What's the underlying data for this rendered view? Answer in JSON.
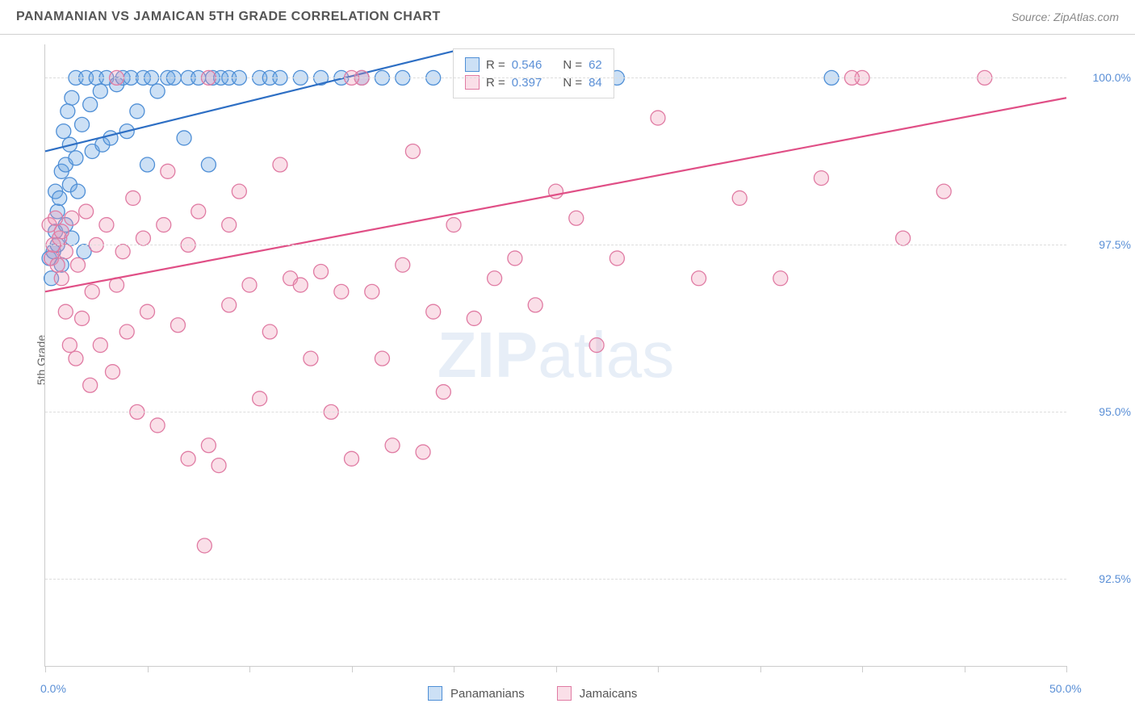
{
  "header": {
    "title": "PANAMANIAN VS JAMAICAN 5TH GRADE CORRELATION CHART",
    "source": "Source: ZipAtlas.com"
  },
  "axes": {
    "y_label": "5th Grade",
    "x_min": 0.0,
    "x_max": 50.0,
    "y_min": 91.2,
    "y_max": 100.5,
    "x_ticks": [
      0,
      5,
      10,
      15,
      20,
      25,
      30,
      35,
      40,
      45,
      50
    ],
    "x_tick_labels": {
      "0": "0.0%",
      "50": "50.0%"
    },
    "y_ticks": [
      92.5,
      95.0,
      97.5,
      100.0
    ],
    "y_tick_labels": [
      "92.5%",
      "95.0%",
      "97.5%",
      "100.0%"
    ],
    "grid_color": "#dddddd"
  },
  "watermark": {
    "text_bold": "ZIP",
    "text_light": "atlas"
  },
  "series": [
    {
      "name": "Panamanians",
      "color_fill": "rgba(110,165,225,0.35)",
      "color_stroke": "#4f8fd6",
      "line_color": "#2e6fc4",
      "r_value": "0.546",
      "n_value": "62",
      "trend": {
        "x1": 0,
        "y1": 98.9,
        "x2": 20,
        "y2": 100.4
      },
      "points": [
        [
          0.2,
          97.3
        ],
        [
          0.3,
          97.0
        ],
        [
          0.4,
          97.4
        ],
        [
          0.5,
          97.7
        ],
        [
          0.5,
          98.3
        ],
        [
          0.6,
          97.5
        ],
        [
          0.6,
          98.0
        ],
        [
          0.7,
          98.2
        ],
        [
          0.8,
          97.2
        ],
        [
          0.8,
          98.6
        ],
        [
          0.9,
          99.2
        ],
        [
          1.0,
          97.8
        ],
        [
          1.0,
          98.7
        ],
        [
          1.1,
          99.5
        ],
        [
          1.2,
          98.4
        ],
        [
          1.2,
          99.0
        ],
        [
          1.3,
          97.6
        ],
        [
          1.3,
          99.7
        ],
        [
          1.5,
          98.8
        ],
        [
          1.5,
          100.0
        ],
        [
          1.6,
          98.3
        ],
        [
          1.8,
          99.3
        ],
        [
          1.9,
          97.4
        ],
        [
          2.0,
          100.0
        ],
        [
          2.2,
          99.6
        ],
        [
          2.3,
          98.9
        ],
        [
          2.5,
          100.0
        ],
        [
          2.7,
          99.8
        ],
        [
          2.8,
          99.0
        ],
        [
          3.0,
          100.0
        ],
        [
          3.2,
          99.1
        ],
        [
          3.5,
          99.9
        ],
        [
          3.8,
          100.0
        ],
        [
          4.0,
          99.2
        ],
        [
          4.2,
          100.0
        ],
        [
          4.5,
          99.5
        ],
        [
          4.8,
          100.0
        ],
        [
          5.0,
          98.7
        ],
        [
          5.2,
          100.0
        ],
        [
          5.5,
          99.8
        ],
        [
          6.0,
          100.0
        ],
        [
          6.3,
          100.0
        ],
        [
          6.8,
          99.1
        ],
        [
          7.0,
          100.0
        ],
        [
          7.5,
          100.0
        ],
        [
          8.0,
          98.7
        ],
        [
          8.2,
          100.0
        ],
        [
          8.6,
          100.0
        ],
        [
          9.0,
          100.0
        ],
        [
          9.5,
          100.0
        ],
        [
          10.5,
          100.0
        ],
        [
          11.0,
          100.0
        ],
        [
          11.5,
          100.0
        ],
        [
          12.5,
          100.0
        ],
        [
          13.5,
          100.0
        ],
        [
          14.5,
          100.0
        ],
        [
          15.5,
          100.0
        ],
        [
          16.5,
          100.0
        ],
        [
          17.5,
          100.0
        ],
        [
          19.0,
          100.0
        ],
        [
          28.0,
          100.0
        ],
        [
          38.5,
          100.0
        ]
      ]
    },
    {
      "name": "Jamaicans",
      "color_fill": "rgba(240,150,180,0.3)",
      "color_stroke": "#e07ba3",
      "line_color": "#e04f86",
      "r_value": "0.397",
      "n_value": "84",
      "trend": {
        "x1": 0,
        "y1": 96.8,
        "x2": 50,
        "y2": 99.7
      },
      "points": [
        [
          0.2,
          97.8
        ],
        [
          0.3,
          97.3
        ],
        [
          0.4,
          97.5
        ],
        [
          0.5,
          97.9
        ],
        [
          0.6,
          97.2
        ],
        [
          0.7,
          97.6
        ],
        [
          0.8,
          97.0
        ],
        [
          0.8,
          97.7
        ],
        [
          1.0,
          97.4
        ],
        [
          1.0,
          96.5
        ],
        [
          1.2,
          96.0
        ],
        [
          1.3,
          97.9
        ],
        [
          1.5,
          95.8
        ],
        [
          1.6,
          97.2
        ],
        [
          1.8,
          96.4
        ],
        [
          2.0,
          98.0
        ],
        [
          2.2,
          95.4
        ],
        [
          2.3,
          96.8
        ],
        [
          2.5,
          97.5
        ],
        [
          2.7,
          96.0
        ],
        [
          3.0,
          97.8
        ],
        [
          3.3,
          95.6
        ],
        [
          3.5,
          96.9
        ],
        [
          3.8,
          97.4
        ],
        [
          4.0,
          96.2
        ],
        [
          4.3,
          98.2
        ],
        [
          4.5,
          95.0
        ],
        [
          4.8,
          97.6
        ],
        [
          5.0,
          96.5
        ],
        [
          5.5,
          94.8
        ],
        [
          5.8,
          97.8
        ],
        [
          6.0,
          98.6
        ],
        [
          6.5,
          96.3
        ],
        [
          7.0,
          94.3
        ],
        [
          7.0,
          97.5
        ],
        [
          7.5,
          98.0
        ],
        [
          7.8,
          93.0
        ],
        [
          8.0,
          94.5
        ],
        [
          8.5,
          94.2
        ],
        [
          9.0,
          96.6
        ],
        [
          9.0,
          97.8
        ],
        [
          9.5,
          98.3
        ],
        [
          10.0,
          96.9
        ],
        [
          10.5,
          95.2
        ],
        [
          11.0,
          96.2
        ],
        [
          11.5,
          98.7
        ],
        [
          12.0,
          97.0
        ],
        [
          12.5,
          96.9
        ],
        [
          13.0,
          95.8
        ],
        [
          13.5,
          97.1
        ],
        [
          14.0,
          95.0
        ],
        [
          14.5,
          96.8
        ],
        [
          15.0,
          94.3
        ],
        [
          15.5,
          100.0
        ],
        [
          16.0,
          96.8
        ],
        [
          16.5,
          95.8
        ],
        [
          17.0,
          94.5
        ],
        [
          17.5,
          97.2
        ],
        [
          18.0,
          98.9
        ],
        [
          18.5,
          94.4
        ],
        [
          19.0,
          96.5
        ],
        [
          19.5,
          95.3
        ],
        [
          20.0,
          97.8
        ],
        [
          21.0,
          96.4
        ],
        [
          22.0,
          97.0
        ],
        [
          23.0,
          97.3
        ],
        [
          24.0,
          96.6
        ],
        [
          25.0,
          98.3
        ],
        [
          26.0,
          97.9
        ],
        [
          27.0,
          96.0
        ],
        [
          28.0,
          97.3
        ],
        [
          30.0,
          99.4
        ],
        [
          32.0,
          97.0
        ],
        [
          34.0,
          98.2
        ],
        [
          36.0,
          97.0
        ],
        [
          38.0,
          98.5
        ],
        [
          40.0,
          100.0
        ],
        [
          42.0,
          97.6
        ],
        [
          44.0,
          98.3
        ],
        [
          46.0,
          100.0
        ],
        [
          39.5,
          100.0
        ],
        [
          3.5,
          100.0
        ],
        [
          8.0,
          100.0
        ],
        [
          15.0,
          100.0
        ]
      ]
    }
  ],
  "legend_top": {
    "r_label": "R =",
    "n_label": "N ="
  },
  "chart_style": {
    "marker_radius": 9,
    "marker_stroke_width": 1.3,
    "trend_line_width": 2.2,
    "background": "#ffffff"
  }
}
